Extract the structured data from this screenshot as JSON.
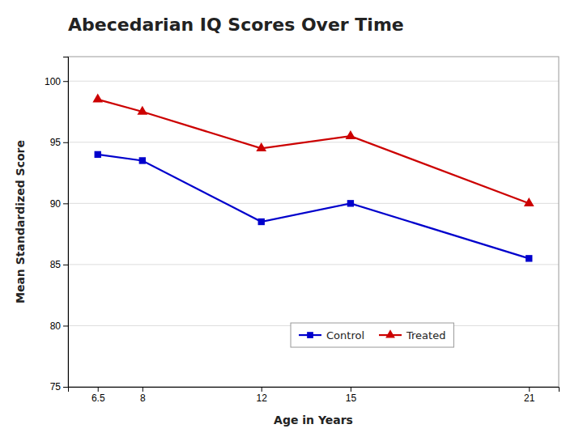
{
  "chart_data": {
    "type": "line",
    "title": "Abecedarian IQ Scores Over Time",
    "x_label": "Age in Years",
    "y_label": "Mean Standardized Score",
    "x": [
      6.5,
      8,
      12,
      15,
      21
    ],
    "series": [
      {
        "name": "Control",
        "color": "#0000CC",
        "marker": "square",
        "line_style": "solid",
        "values": [
          94.0,
          93.5,
          88.5,
          90.0,
          85.5
        ]
      },
      {
        "name": "Treated",
        "color": "#CC0000",
        "marker": "triangle",
        "line_style": "solid",
        "values": [
          98.5,
          97.5,
          94.5,
          95.5,
          90.0
        ]
      }
    ],
    "xlim": [
      5.5,
      22
    ],
    "ylim": [
      75,
      102
    ],
    "xticks": [
      6.5,
      8,
      12,
      15,
      21
    ],
    "yticks": [
      75,
      80,
      85,
      90,
      95,
      100
    ],
    "grid": true,
    "legend": "bottom"
  }
}
